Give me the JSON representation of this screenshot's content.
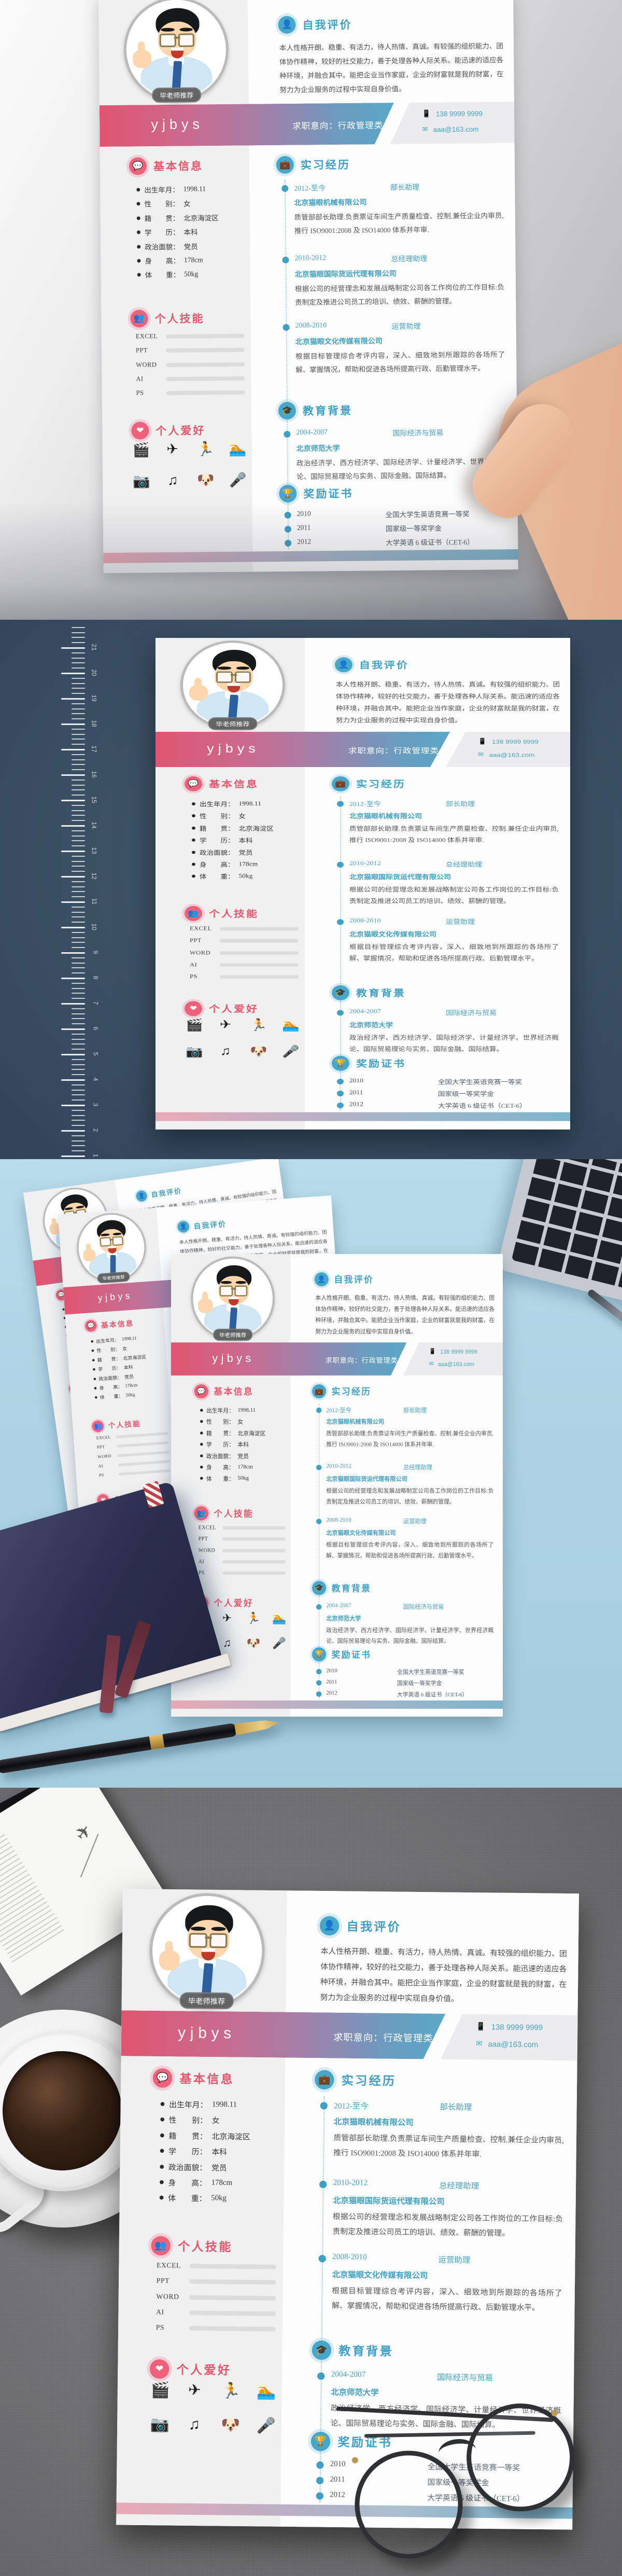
{
  "resume": {
    "name": "yjbys",
    "badge": "毕老师推荐",
    "objective": "求职意向：行政管理类",
    "contact": {
      "phone": "138 9999 9999",
      "phone_glyph": "📱",
      "email": "aaa@163.com",
      "email_glyph": "✉"
    },
    "sections": {
      "self_eval": {
        "title": "自我评价",
        "glyph": "👤"
      },
      "basic": {
        "title": "基本信息",
        "glyph": "💬"
      },
      "skills": {
        "title": "个人技能",
        "glyph": "👥"
      },
      "hobbies": {
        "title": "个人爱好",
        "glyph": "❤"
      },
      "intern": {
        "title": "实习经历",
        "glyph": "💼"
      },
      "edu": {
        "title": "教育背景",
        "glyph": "🎓"
      },
      "awards": {
        "title": "奖励证书",
        "glyph": "🏆"
      }
    },
    "self_evaluation": "本人性格开朗、稳重、有活力，待人热情、真诚。有较强的组织能力、团体协作精神，较好的社交能力，善于处理各种人际关系。能迅速的适应各种环境，并融合其中。能把企业当作家庭，企业的财富就是我的财富，在努力为企业服务的过程中实现自身价值。",
    "basic_info": [
      {
        "label": "出生年月：",
        "value": "1998.11"
      },
      {
        "label": "性　　别：",
        "value": "女"
      },
      {
        "label": "籍　　贯：",
        "value": "北京海淀区"
      },
      {
        "label": "学　　历：",
        "value": "本科"
      },
      {
        "label": "政治面貌：",
        "value": "党员"
      },
      {
        "label": "身　　高：",
        "value": "178cm"
      },
      {
        "label": "体　　重：",
        "value": "50kg"
      }
    ],
    "skills": [
      {
        "name": "EXCEL",
        "percent": 88
      },
      {
        "name": "PPT",
        "percent": 78
      },
      {
        "name": "WORD",
        "percent": 92
      },
      {
        "name": "AI",
        "percent": 82
      },
      {
        "name": "PS",
        "percent": 68
      }
    ],
    "hobby_icons": [
      {
        "name": "movie-camera",
        "glyph": "🎬"
      },
      {
        "name": "airplane",
        "glyph": "✈"
      },
      {
        "name": "running",
        "glyph": "🏃"
      },
      {
        "name": "swimming",
        "glyph": "🏊"
      },
      {
        "name": "camera",
        "glyph": "📷"
      },
      {
        "name": "music-note",
        "glyph": "♫"
      },
      {
        "name": "dog",
        "glyph": "🐶"
      },
      {
        "name": "microphone",
        "glyph": "🎤"
      }
    ],
    "internships": [
      {
        "period": "2012-至今",
        "title": "部长助理",
        "company": "北京猫眼机械有限公司",
        "desc": "质管部部长助理.负责票证车间生产质量检查、控制.兼任企业内审员,推行 ISO9001:2008 及 ISO14000 体系并年审."
      },
      {
        "period": "2010-2012",
        "title": "总经理助理",
        "company": "北京猫眼国际货运代理有限公司",
        "desc": "根据公司的经营理念和发展战略制定公司各工作岗位的工作目标:负责制定及推进公司员工的培训、绩效、薪酬的管理。"
      },
      {
        "period": "2008-2010",
        "title": "运营助理",
        "company": "北京猫眼文化传媒有限公司",
        "desc": "根据目标管理综合考评内容，深入、细致地到所跟踪的各场所了解、掌握情况，帮助和促进各场所提高行政、后勤管理水平。"
      }
    ],
    "education": [
      {
        "period": "2004-2007",
        "major": "国际经济与贸易",
        "school": "北京师范大学",
        "desc": "政治经济学、西方经济学、国际经济学、计量经济学、世界经济概论、国际贸易理论与实务、国际金融、国际结算。"
      }
    ],
    "awards": [
      {
        "year": "2010",
        "title": "全国大学生英语竞赛一等奖"
      },
      {
        "year": "2011",
        "title": "国家级一等奖学金"
      },
      {
        "year": "2012",
        "title": "大学英语 6 级证书（CET-6）"
      }
    ]
  },
  "colors": {
    "accent_pink": "#e8566d",
    "accent_teal": "#3f9fc4",
    "banner_gradient_start": "#e05570",
    "banner_gradient_end": "#54aac9",
    "left_column_bg": "#f0f0f1",
    "skill_track": "#dcdcdd",
    "section2_bg": "#3c5064",
    "section3_bg": "#aed3e4",
    "section4_bg": "#6f6f71"
  },
  "ruler": {
    "major_numbers": [
      21,
      20,
      19,
      18,
      17,
      16,
      15,
      14,
      13,
      12,
      11,
      10,
      9,
      8,
      7,
      6,
      5,
      4,
      3,
      2,
      1
    ]
  }
}
